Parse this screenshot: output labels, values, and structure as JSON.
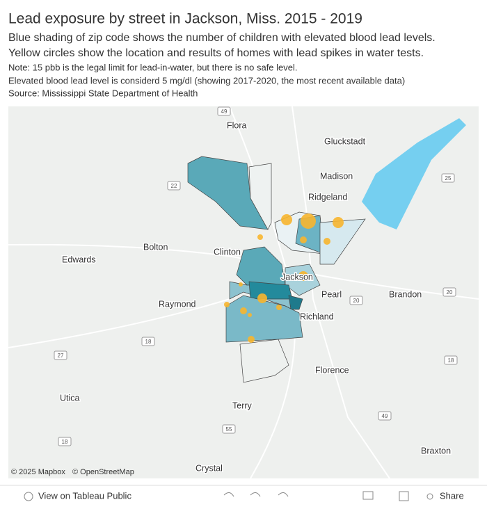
{
  "header": {
    "title": "Lead exposure by street in Jackson, Miss. 2015 - 2019",
    "subtitle": [
      "Blue shading  of zip code shows the number of children with elevated blood lead levels.",
      "Yellow circles show the location and results of homes with lead spikes in water tests."
    ],
    "notes": [
      "Note: 15 pbb is the legal limit for lead-in-water, but there is no safe level.",
      "Elevated blood lead level is considerd 5 mg/dl (showing 2017-2020, the most recent available data)",
      "Source: Mississippi State Department of Health"
    ]
  },
  "map": {
    "places": [
      "Flora",
      "Gluckstadt",
      "Madison",
      "Ridgeland",
      "Bolton",
      "Clinton",
      "Edwards",
      "Jackson",
      "Pearl",
      "Brandon",
      "Raymond",
      "Richland",
      "Florence",
      "Utica",
      "Terry",
      "Braxton",
      "Crystal"
    ],
    "shields": [
      "49",
      "22",
      "25",
      "20",
      "20",
      "18",
      "27",
      "18",
      "49",
      "55",
      "18"
    ],
    "attribution": [
      "© 2025 Mapbox",
      "© OpenStreetMap"
    ]
  },
  "footer": {
    "view": "View on Tableau Public",
    "share": "Share"
  }
}
